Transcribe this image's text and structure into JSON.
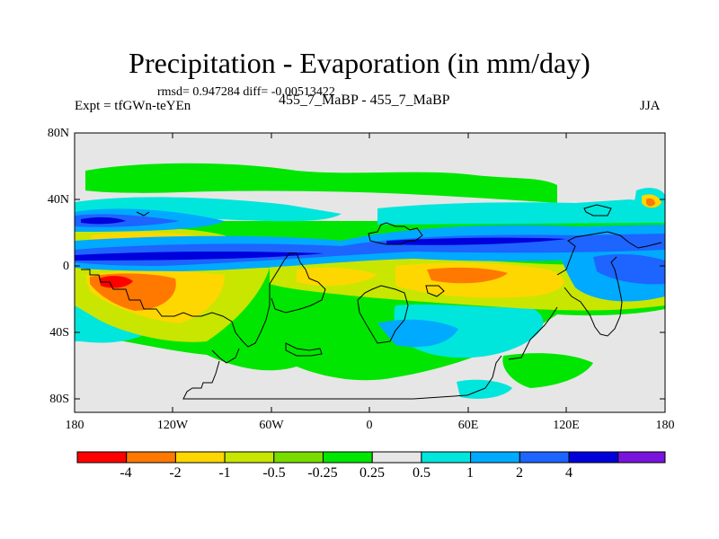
{
  "title": "Precipitation - Evaporation (in mm/day)",
  "stats": "rmsd= 0.947284 diff= -0.00513422",
  "experiment": "Expt = tfGWn-teYEn",
  "case_label": "455_7_MaBP - 455_7_MaBP",
  "season": "JJA",
  "axes": {
    "lat_ticks": [
      "80N",
      "40N",
      "0",
      "40S",
      "80S"
    ],
    "lon_ticks": [
      "180",
      "120W",
      "60W",
      "0",
      "60E",
      "120E",
      "180"
    ]
  },
  "colorbar": {
    "colors": [
      "#ff0000",
      "#ff7800",
      "#ffd700",
      "#c8e600",
      "#78dc00",
      "#00e600",
      "#e6e6e6",
      "#00e6dc",
      "#00aaff",
      "#1e64ff",
      "#0000dc",
      "#7814dc"
    ],
    "labels": [
      "-4",
      "-2",
      "-1",
      "-0.5",
      "-0.25",
      "0.25",
      "0.5",
      "1",
      "2",
      "4"
    ]
  },
  "colors": {
    "background": "#e6e6e6",
    "land_outline": "#000000"
  }
}
